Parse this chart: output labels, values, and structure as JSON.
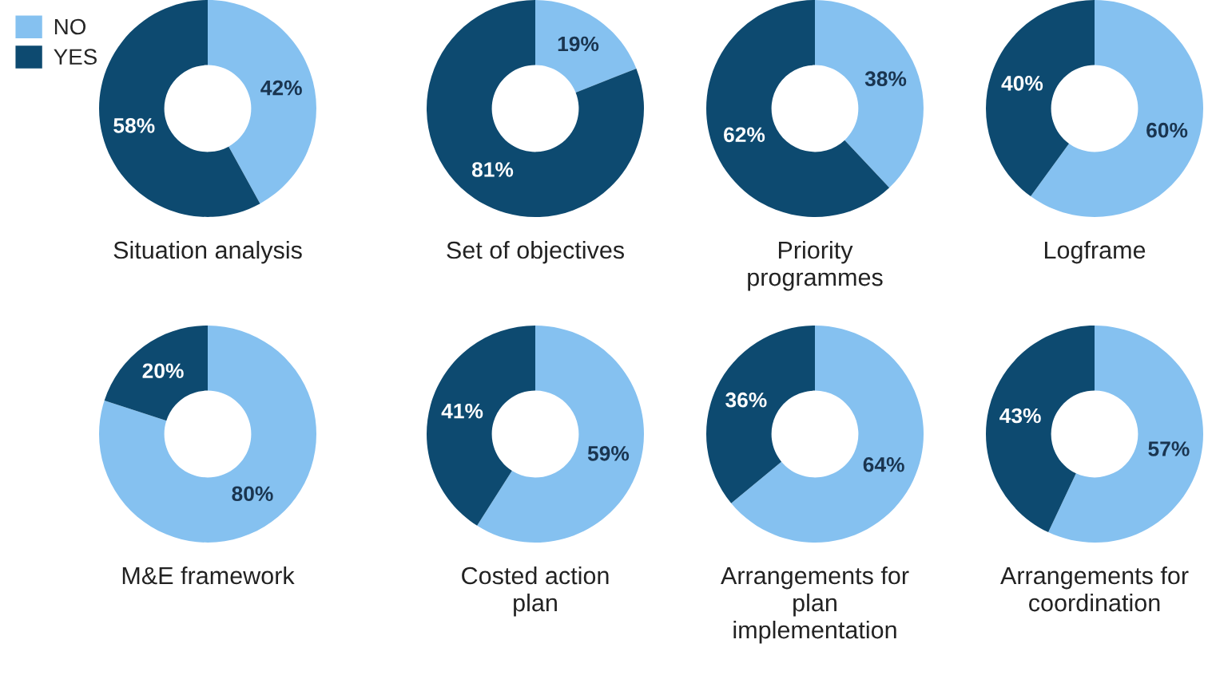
{
  "chart_data": [
    {
      "type": "donut",
      "title": "Situation analysis",
      "categories": [
        "NO",
        "YES"
      ],
      "values": [
        42,
        58
      ],
      "colors": [
        "#85c1f0",
        "#0d4a70"
      ],
      "value_labels": [
        "42%",
        "58%"
      ],
      "legend": "top left"
    },
    {
      "type": "donut",
      "title": "Set of objectives",
      "values": [
        19,
        81
      ],
      "colors": [
        "#85c1f0",
        "#0d4a70"
      ],
      "value_labels": [
        "19%",
        "81%"
      ]
    },
    {
      "type": "donut",
      "title": "Priority\nprogrammes",
      "values": [
        38,
        62
      ],
      "colors": [
        "#85c1f0",
        "#0d4a70"
      ],
      "value_labels": [
        "38%",
        "62%"
      ]
    },
    {
      "type": "donut",
      "title": "Logframe",
      "values": [
        60,
        40
      ],
      "colors": [
        "#85c1f0",
        "#0d4a70"
      ],
      "value_labels": [
        "60%",
        "40%"
      ]
    },
    {
      "type": "donut",
      "title": "M&E framework",
      "values": [
        80,
        20
      ],
      "colors": [
        "#85c1f0",
        "#0d4a70"
      ],
      "value_labels": [
        "80%",
        "20%"
      ]
    },
    {
      "type": "donut",
      "title": "Costed action\nplan",
      "values": [
        59,
        41
      ],
      "colors": [
        "#85c1f0",
        "#0d4a70"
      ],
      "value_labels": [
        "59%",
        "41%"
      ]
    },
    {
      "type": "donut",
      "title": "Arrangements for\nplan\nimplementation",
      "values": [
        64,
        36
      ],
      "colors": [
        "#85c1f0",
        "#0d4a70"
      ],
      "value_labels": [
        "64%",
        "36%"
      ]
    },
    {
      "type": "donut",
      "title": "Arrangements for\ncoordination",
      "values": [
        57,
        43
      ],
      "colors": [
        "#85c1f0",
        "#0d4a70"
      ],
      "value_labels": [
        "57%",
        "43%"
      ]
    }
  ]
}
